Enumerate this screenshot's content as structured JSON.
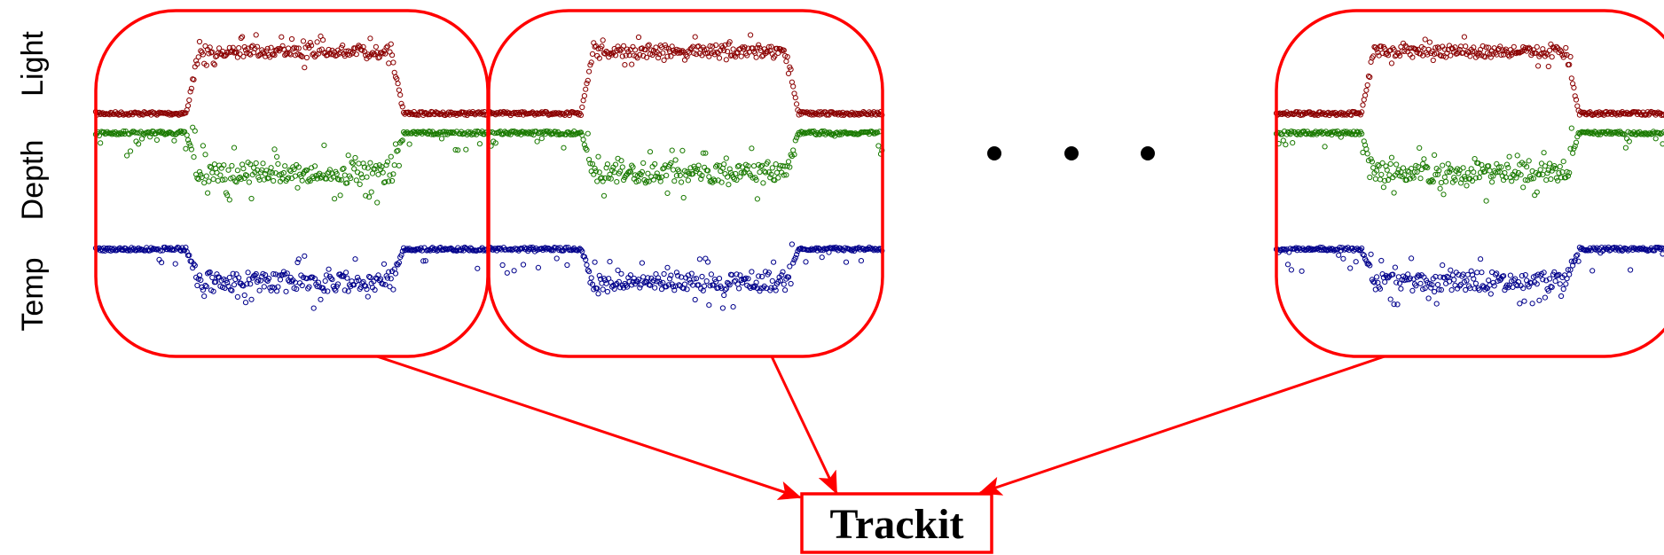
{
  "row_labels": [
    "Light",
    "Depth",
    "Temp"
  ],
  "output": {
    "label": "Trackit"
  }
}
